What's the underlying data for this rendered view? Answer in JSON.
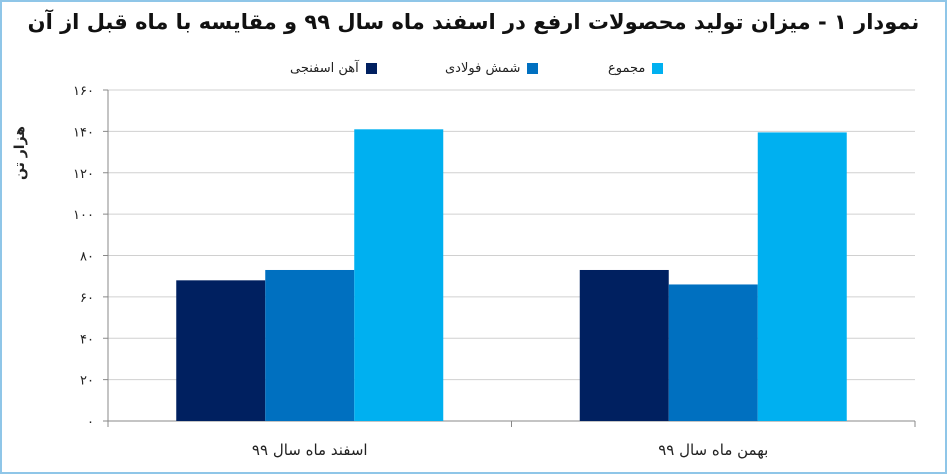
{
  "chart_data": {
    "type": "bar",
    "title": "نمودار ۱ - میزان تولید محصولات ارفع در اسفند ماه سال ۹۹ و مقایسه با ماه قبل از آن",
    "ylabel": "هزار تن",
    "xlabel": "",
    "ylim": [
      0,
      160
    ],
    "yticks": [
      "۰",
      "۲۰",
      "۴۰",
      "۶۰",
      "۸۰",
      "۱۰۰",
      "۱۲۰",
      "۱۴۰",
      "۱۶۰"
    ],
    "categories": [
      "بهمن ماه سال ۹۹",
      "اسفند ماه سال ۹۹"
    ],
    "series": [
      {
        "name": "آهن اسفنجی",
        "color": "#002060",
        "values": [
          73,
          68
        ]
      },
      {
        "name": "شمش فولادی",
        "color": "#0070c0",
        "values": [
          66,
          73
        ]
      },
      {
        "name": "مجموع",
        "color": "#00b0f0",
        "values": [
          139.5,
          141
        ]
      }
    ],
    "grid": true,
    "legend": "top"
  }
}
